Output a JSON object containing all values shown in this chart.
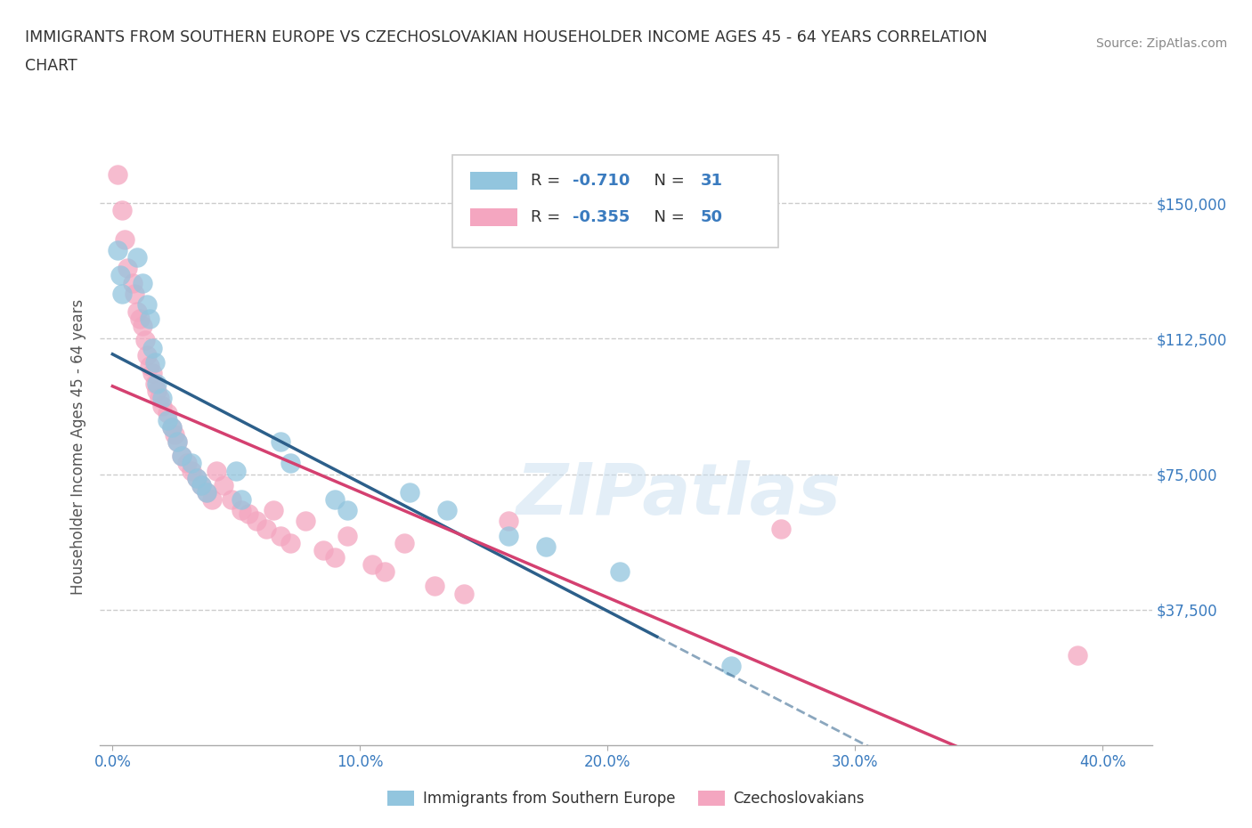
{
  "title_line1": "IMMIGRANTS FROM SOUTHERN EUROPE VS CZECHOSLOVAKIAN HOUSEHOLDER INCOME AGES 45 - 64 YEARS CORRELATION",
  "title_line2": "CHART",
  "source_text": "Source: ZipAtlas.com",
  "ylabel": "Householder Income Ages 45 - 64 years",
  "xlim": [
    -0.005,
    0.42
  ],
  "ylim": [
    0,
    165000
  ],
  "xtick_labels": [
    "0.0%",
    "10.0%",
    "20.0%",
    "30.0%",
    "40.0%"
  ],
  "xtick_values": [
    0.0,
    0.1,
    0.2,
    0.3,
    0.4
  ],
  "ytick_labels": [
    "$37,500",
    "$75,000",
    "$112,500",
    "$150,000"
  ],
  "ytick_values": [
    37500,
    75000,
    112500,
    150000
  ],
  "blue_color": "#92c5de",
  "pink_color": "#f4a6c0",
  "blue_line_color": "#2c5f8a",
  "pink_line_color": "#d44070",
  "legend_R1": "-0.710",
  "legend_N1": "31",
  "legend_R2": "-0.355",
  "legend_N2": "50",
  "legend_label1": "Immigrants from Southern Europe",
  "legend_label2": "Czechoslovakians",
  "watermark": "ZIPatlas",
  "blue_scatter_x": [
    0.002,
    0.003,
    0.004,
    0.01,
    0.012,
    0.014,
    0.015,
    0.016,
    0.017,
    0.018,
    0.02,
    0.022,
    0.024,
    0.026,
    0.028,
    0.032,
    0.034,
    0.036,
    0.038,
    0.05,
    0.052,
    0.068,
    0.072,
    0.09,
    0.095,
    0.12,
    0.135,
    0.16,
    0.175,
    0.205,
    0.25
  ],
  "blue_scatter_y": [
    137000,
    130000,
    125000,
    135000,
    128000,
    122000,
    118000,
    110000,
    106000,
    100000,
    96000,
    90000,
    88000,
    84000,
    80000,
    78000,
    74000,
    72000,
    70000,
    76000,
    68000,
    84000,
    78000,
    68000,
    65000,
    70000,
    65000,
    58000,
    55000,
    48000,
    22000
  ],
  "pink_scatter_x": [
    0.002,
    0.004,
    0.005,
    0.006,
    0.008,
    0.009,
    0.01,
    0.011,
    0.012,
    0.013,
    0.014,
    0.015,
    0.016,
    0.017,
    0.018,
    0.019,
    0.02,
    0.022,
    0.024,
    0.025,
    0.026,
    0.028,
    0.03,
    0.032,
    0.034,
    0.036,
    0.038,
    0.04,
    0.042,
    0.045,
    0.048,
    0.052,
    0.055,
    0.058,
    0.062,
    0.065,
    0.068,
    0.072,
    0.078,
    0.085,
    0.09,
    0.095,
    0.105,
    0.11,
    0.118,
    0.13,
    0.142,
    0.16,
    0.27,
    0.39
  ],
  "pink_scatter_y": [
    158000,
    148000,
    140000,
    132000,
    128000,
    125000,
    120000,
    118000,
    116000,
    112000,
    108000,
    105000,
    103000,
    100000,
    98000,
    96000,
    94000,
    92000,
    88000,
    86000,
    84000,
    80000,
    78000,
    76000,
    74000,
    72000,
    70000,
    68000,
    76000,
    72000,
    68000,
    65000,
    64000,
    62000,
    60000,
    65000,
    58000,
    56000,
    62000,
    54000,
    52000,
    58000,
    50000,
    48000,
    56000,
    44000,
    42000,
    62000,
    60000,
    25000
  ],
  "grid_color": "#cccccc",
  "background_color": "#ffffff"
}
